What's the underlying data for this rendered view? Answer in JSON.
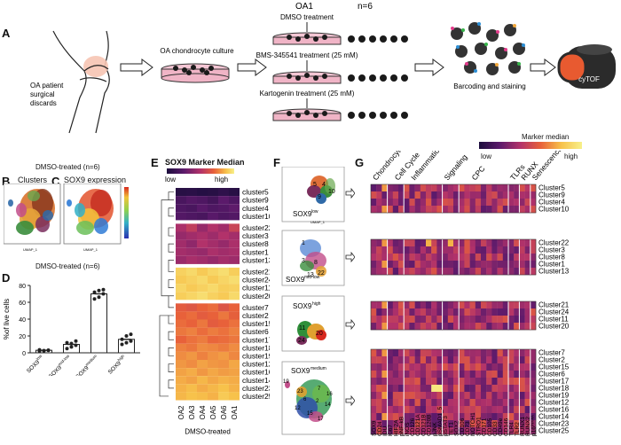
{
  "panels": {
    "A": "A",
    "B": "B",
    "C": "C",
    "D": "D",
    "E": "E",
    "F": "F",
    "G": "G"
  },
  "schematic": {
    "title": "OA1",
    "n": "n=6",
    "patient_label_1": "OA patient",
    "patient_label_2": "surgical",
    "patient_label_3": "discards",
    "culture_label": "OA chondrocyte culture",
    "dmso_label": "DMSO treatment",
    "bms_label": "BMS-345541 treatment (25 mM)",
    "karto_label": "Kartogenin treatment (25 mM)",
    "barcode_label": "Barcoding and staining",
    "cytof_label": "cyTOF"
  },
  "panel_b": {
    "group_title": "DMSO-treated (n=6)",
    "title": "Clusters",
    "xlabel": "UMAP_1",
    "ylabel": "UMAP_2"
  },
  "panel_c": {
    "title": "SOX9 expression",
    "xlabel": "UMAP_1",
    "ylabel": "UMAP_2"
  },
  "panel_d": {
    "title": "DMSO-treated (n=6)"
  },
  "panel_e": {
    "title": "SOX9 Marker Median",
    "low": "low",
    "high": "high",
    "xlabel": "DMSO-treated"
  },
  "panel_f": {
    "group_low": "SOX9",
    "sup_low": "low",
    "group_midlow": "SOX9",
    "sup_midlow": "mid-low",
    "group_high": "SOX9",
    "sup_high": "high",
    "group_medium": "SOX9",
    "sup_medium": "medium",
    "xlabel": "UMAP_1",
    "ylabel": "UMAP_2"
  },
  "panel_g": {
    "legend_title": "Marker median",
    "low": "low",
    "high": "high"
  },
  "colors": {
    "sox9_low": "#1b0d3c",
    "sox9_high": "#f7f08a",
    "heat_mid": "#c13a6b"
  },
  "chart_data": [
    {
      "type": "bar",
      "title": "DMSO-treated (n=6)",
      "ylabel": "%of live cells",
      "categories": [
        "SOX9low",
        "SOX9mid-low",
        "SOX9medium",
        "SOX9high"
      ],
      "category_base": [
        "SOX9",
        "SOX9",
        "SOX9",
        "SOX9"
      ],
      "category_sup": [
        "low",
        "mid-low",
        "medium",
        "high"
      ],
      "values": [
        3,
        10,
        70,
        16
      ],
      "points": [
        [
          2,
          2.5,
          3,
          3.5,
          2.5,
          3
        ],
        [
          5,
          7,
          9,
          12,
          11,
          14
        ],
        [
          64,
          66,
          70,
          72,
          74,
          75
        ],
        [
          10,
          12,
          14,
          16,
          20,
          22
        ]
      ],
      "ylim": [
        0,
        80
      ],
      "yticks": [
        "0",
        "20",
        "40",
        "60",
        "80"
      ]
    },
    {
      "type": "heatmap",
      "title": "SOX9 Marker Median",
      "columns": [
        "OA2",
        "OA3",
        "OA4",
        "OA5",
        "OA6",
        "OA1"
      ],
      "groups": [
        {
          "clusters": [
            "cluster5",
            "cluster9",
            "cluster4",
            "cluster10"
          ]
        },
        {
          "clusters": [
            "cluster22",
            "cluster3",
            "cluster8",
            "cluster1",
            "cluster13"
          ]
        },
        {
          "clusters": [
            "cluster21",
            "cluster24",
            "cluster11",
            "cluster20"
          ]
        },
        {
          "clusters": [
            "cluster7",
            "cluster2",
            "cluster15",
            "cluster6",
            "cluster17",
            "cluster18",
            "cluster19",
            "cluster12",
            "cluster16",
            "cluster14",
            "cluster23",
            "cluster25"
          ]
        }
      ],
      "values": [
        [
          0.05,
          0.06,
          0.04,
          0.05,
          0.08,
          0.05
        ],
        [
          0.18,
          0.22,
          0.2,
          0.16,
          0.25,
          0.2
        ],
        [
          0.2,
          0.18,
          0.24,
          0.2,
          0.22,
          0.26
        ],
        [
          0.22,
          0.2,
          0.18,
          0.24,
          0.2,
          0.22
        ],
        [
          0.48,
          0.55,
          0.42,
          0.5,
          0.45,
          0.58
        ],
        [
          0.42,
          0.45,
          0.48,
          0.44,
          0.5,
          0.46
        ],
        [
          0.45,
          0.4,
          0.5,
          0.46,
          0.42,
          0.48
        ],
        [
          0.46,
          0.44,
          0.42,
          0.48,
          0.45,
          0.47
        ],
        [
          0.43,
          0.47,
          0.45,
          0.42,
          0.46,
          0.44
        ],
        [
          0.92,
          0.94,
          0.9,
          0.93,
          0.95,
          0.91
        ],
        [
          0.9,
          0.92,
          0.94,
          0.9,
          0.93,
          0.95
        ],
        [
          0.93,
          0.9,
          0.92,
          0.94,
          0.91,
          0.92
        ],
        [
          0.91,
          0.93,
          0.95,
          0.92,
          0.9,
          0.94
        ],
        [
          0.68,
          0.66,
          0.7,
          0.72,
          0.65,
          0.7
        ],
        [
          0.7,
          0.72,
          0.68,
          0.7,
          0.74,
          0.69
        ],
        [
          0.72,
          0.7,
          0.74,
          0.68,
          0.7,
          0.73
        ],
        [
          0.74,
          0.76,
          0.72,
          0.75,
          0.73,
          0.76
        ],
        [
          0.7,
          0.73,
          0.75,
          0.71,
          0.72,
          0.74
        ],
        [
          0.76,
          0.74,
          0.78,
          0.77,
          0.75,
          0.78
        ],
        [
          0.78,
          0.8,
          0.76,
          0.79,
          0.81,
          0.77
        ],
        [
          0.8,
          0.78,
          0.82,
          0.8,
          0.79,
          0.83
        ],
        [
          0.82,
          0.84,
          0.8,
          0.83,
          0.81,
          0.82
        ],
        [
          0.84,
          0.82,
          0.86,
          0.83,
          0.85,
          0.84
        ],
        [
          0.85,
          0.87,
          0.84,
          0.86,
          0.88,
          0.85
        ],
        [
          0.86,
          0.88,
          0.87,
          0.85,
          0.9,
          0.88
        ]
      ]
    },
    {
      "type": "heatmap",
      "title": "Marker median",
      "marker_categories": [
        "Chondrocyte",
        "Cell Cycle",
        "Inflammation",
        "Signaling",
        "CPC",
        "TLRs",
        "RUNX",
        "Senescence"
      ],
      "markers": [
        "SOX9",
        "CD24",
        "IDU",
        "Ki67",
        "HIF2A",
        "pNF-kB",
        "iNOS",
        "CD126",
        "CD121A",
        "CD121B",
        "CD120B",
        "pJNK",
        "pSMAD1_5",
        "pSTAT3",
        "TET1",
        "SOX2",
        "CD106",
        "CD73",
        "NOTCH1",
        "STRO1",
        "CD171",
        "CD105",
        "CD33",
        "CD49e",
        "CD146",
        "TLR4",
        "TLR2",
        "RUNX1",
        "RUNX2",
        "p16INK4A"
      ],
      "marker_sup": {
        "p16INK4A": "INK4A"
      },
      "groups": [
        [
          "Cluster5",
          "Cluster9",
          "Cluster4",
          "Cluster10"
        ],
        [
          "Cluster22",
          "Cluster3",
          "Cluster8",
          "Cluster1",
          "Cluster13"
        ],
        [
          "Cluster21",
          "Cluster24",
          "Cluster11",
          "Cluster20"
        ],
        [
          "Cluster7",
          "Cluster2",
          "Cluster15",
          "Cluster6",
          "Cluster17",
          "Cluster18",
          "Cluster19",
          "Cluster12",
          "Cluster16",
          "Cluster14",
          "Cluster23",
          "Cluster25"
        ]
      ]
    }
  ]
}
